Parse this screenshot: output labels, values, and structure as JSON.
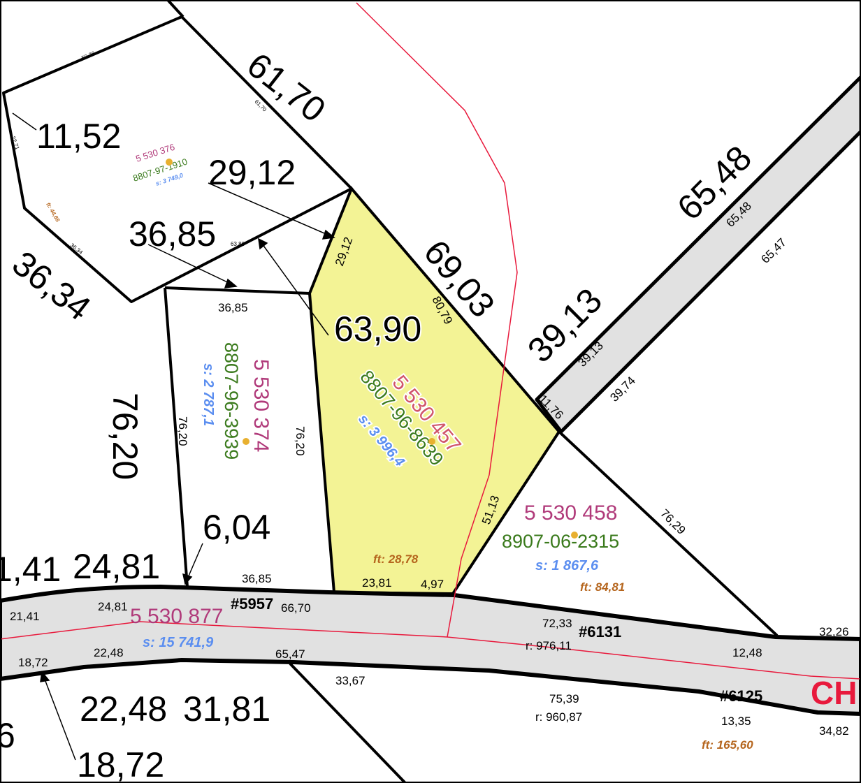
{
  "colors": {
    "lot_number": "#b03a7a",
    "matricule": "#3a7a1c",
    "area": "#5b8ef0",
    "frontage": "#b5651d",
    "highlight_fill": "#f3f395",
    "road_fill": "#e1e1e1",
    "boundary_red": "#e8193c"
  },
  "lots": [
    {
      "lot": "5 530 376",
      "matricule": "8807-97-1910",
      "area": "s: 3 749,0",
      "frontage": "ft: 44,65"
    },
    {
      "lot": "5 530 374",
      "matricule": "8807-96-3939",
      "area": "s: 2 787,1"
    },
    {
      "lot": "5 530 457",
      "matricule": "8807-96-8639",
      "area": "s: 3 996,4",
      "frontage": "ft: 28,78",
      "highlighted": true
    },
    {
      "lot": "5 530 458",
      "matricule": "8907-06-2315",
      "area": "s: 1 867,6",
      "frontage": "ft: 84,81"
    },
    {
      "lot": "5 530 877",
      "area": "s: 15 741,9"
    }
  ],
  "roads": [
    {
      "number": "#5957"
    },
    {
      "number": "#6131",
      "segment": "72,33",
      "radius": "r: 976,11"
    },
    {
      "number": "#6125",
      "segment": "75,39",
      "radius": "r: 960,87",
      "extra": "13,35",
      "frontage": "ft: 165,60"
    }
  ],
  "street_name": "CH",
  "dimensions": {
    "large": [
      "11,52",
      "61,70",
      "29,12",
      "36,85",
      "36,34",
      "69,03",
      "63,90",
      "65,48",
      "39,13",
      "76,20",
      "6,04",
      "24,81",
      "22,48",
      "31,81",
      "18,72"
    ],
    "large_partial": [
      "1,41",
      "6"
    ],
    "small": [
      "50,26",
      "61,70",
      "22,71",
      "29,12",
      "63,88",
      "36,34",
      "36,85",
      "80,79",
      "76,20",
      "76,20",
      "65,48",
      "65,47",
      "39,13",
      "39,74",
      "11,76",
      "51,13",
      "76,29",
      "36,85",
      "23,81",
      "4,97",
      "66,70",
      "21,41",
      "24,81",
      "22,48",
      "18,72",
      "65,47",
      "33,67",
      "12,48",
      "32,26",
      "34,82"
    ]
  }
}
